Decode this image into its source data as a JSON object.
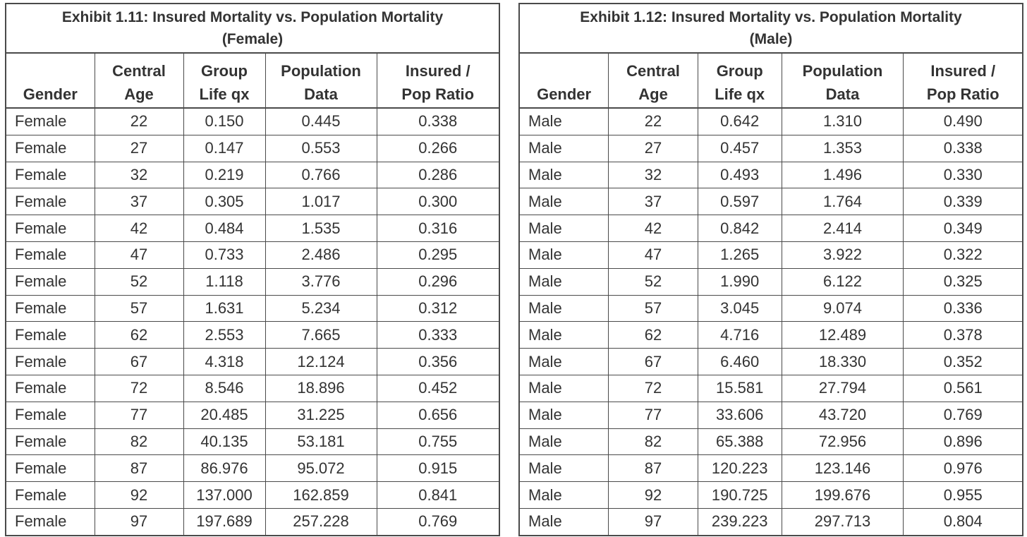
{
  "female_table": {
    "title_line1": "Exhibit 1.11: Insured Mortality vs. Population Mortality",
    "title_line2": "(Female)",
    "headers": [
      {
        "line1": "",
        "line2": "Gender"
      },
      {
        "line1": "Central",
        "line2": "Age"
      },
      {
        "line1": "Group",
        "line2": "Life qx"
      },
      {
        "line1": "Population",
        "line2": "Data"
      },
      {
        "line1": "Insured /",
        "line2": "Pop Ratio"
      }
    ],
    "rows": [
      [
        "Female",
        "22",
        "0.150",
        "0.445",
        "0.338"
      ],
      [
        "Female",
        "27",
        "0.147",
        "0.553",
        "0.266"
      ],
      [
        "Female",
        "32",
        "0.219",
        "0.766",
        "0.286"
      ],
      [
        "Female",
        "37",
        "0.305",
        "1.017",
        "0.300"
      ],
      [
        "Female",
        "42",
        "0.484",
        "1.535",
        "0.316"
      ],
      [
        "Female",
        "47",
        "0.733",
        "2.486",
        "0.295"
      ],
      [
        "Female",
        "52",
        "1.118",
        "3.776",
        "0.296"
      ],
      [
        "Female",
        "57",
        "1.631",
        "5.234",
        "0.312"
      ],
      [
        "Female",
        "62",
        "2.553",
        "7.665",
        "0.333"
      ],
      [
        "Female",
        "67",
        "4.318",
        "12.124",
        "0.356"
      ],
      [
        "Female",
        "72",
        "8.546",
        "18.896",
        "0.452"
      ],
      [
        "Female",
        "77",
        "20.485",
        "31.225",
        "0.656"
      ],
      [
        "Female",
        "82",
        "40.135",
        "53.181",
        "0.755"
      ],
      [
        "Female",
        "87",
        "86.976",
        "95.072",
        "0.915"
      ],
      [
        "Female",
        "92",
        "137.000",
        "162.859",
        "0.841"
      ],
      [
        "Female",
        "97",
        "197.689",
        "257.228",
        "0.769"
      ]
    ]
  },
  "male_table": {
    "title_line1": "Exhibit 1.12: Insured Mortality vs. Population Mortality",
    "title_line2": "(Male)",
    "headers": [
      {
        "line1": "",
        "line2": "Gender"
      },
      {
        "line1": "Central",
        "line2": "Age"
      },
      {
        "line1": "Group",
        "line2": "Life qx"
      },
      {
        "line1": "Population",
        "line2": "Data"
      },
      {
        "line1": "Insured /",
        "line2": "Pop Ratio"
      }
    ],
    "rows": [
      [
        "Male",
        "22",
        "0.642",
        "1.310",
        "0.490"
      ],
      [
        "Male",
        "27",
        "0.457",
        "1.353",
        "0.338"
      ],
      [
        "Male",
        "32",
        "0.493",
        "1.496",
        "0.330"
      ],
      [
        "Male",
        "37",
        "0.597",
        "1.764",
        "0.339"
      ],
      [
        "Male",
        "42",
        "0.842",
        "2.414",
        "0.349"
      ],
      [
        "Male",
        "47",
        "1.265",
        "3.922",
        "0.322"
      ],
      [
        "Male",
        "52",
        "1.990",
        "6.122",
        "0.325"
      ],
      [
        "Male",
        "57",
        "3.045",
        "9.074",
        "0.336"
      ],
      [
        "Male",
        "62",
        "4.716",
        "12.489",
        "0.378"
      ],
      [
        "Male",
        "67",
        "6.460",
        "18.330",
        "0.352"
      ],
      [
        "Male",
        "72",
        "15.581",
        "27.794",
        "0.561"
      ],
      [
        "Male",
        "77",
        "33.606",
        "43.720",
        "0.769"
      ],
      [
        "Male",
        "82",
        "65.388",
        "72.956",
        "0.896"
      ],
      [
        "Male",
        "87",
        "120.223",
        "123.146",
        "0.976"
      ],
      [
        "Male",
        "92",
        "190.725",
        "199.676",
        "0.955"
      ],
      [
        "Male",
        "97",
        "239.223",
        "297.713",
        "0.804"
      ]
    ]
  }
}
